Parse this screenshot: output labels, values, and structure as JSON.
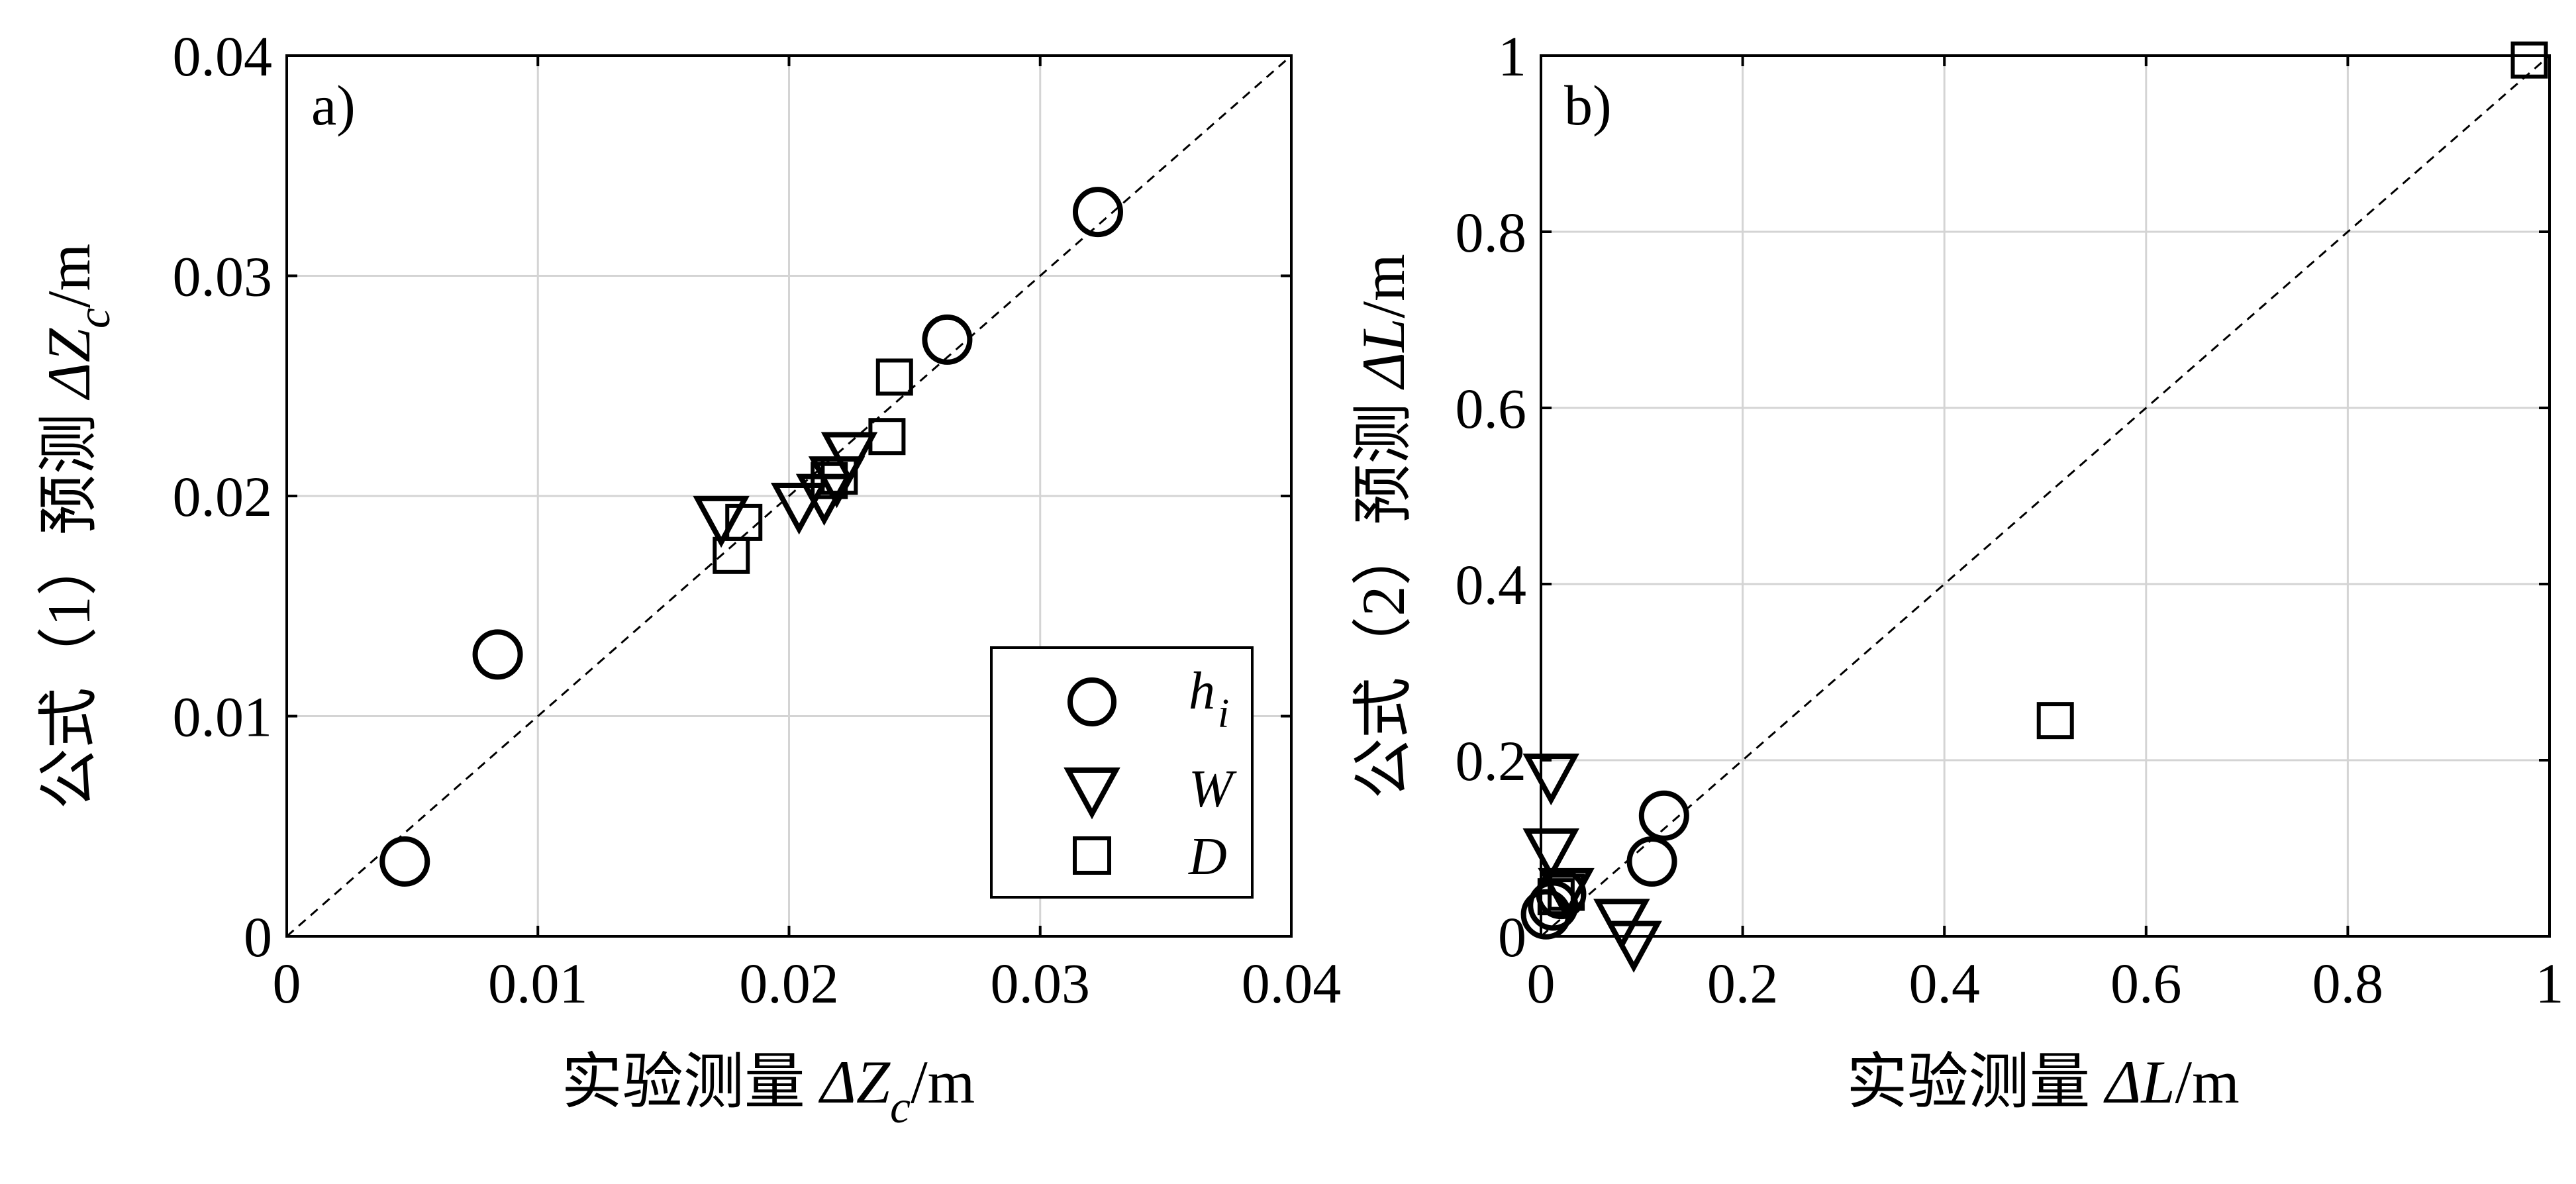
{
  "chart_data": [
    {
      "type": "scatter",
      "panel_label": "a)",
      "xlabel": "实验测量 ΔZc/m",
      "ylabel": "公式（1）预测 ΔZc/m",
      "xlabel_parts": {
        "cn": "实验测量 ",
        "delta": "Δ",
        "var": "Z",
        "sub": "c",
        "unit": "/m"
      },
      "ylabel_parts": {
        "cn": "公式（1）预测 ",
        "delta": "Δ",
        "var": "Z",
        "sub": "c",
        "unit": "/m"
      },
      "xlim": [
        0,
        0.04
      ],
      "ylim": [
        0,
        0.04
      ],
      "x_ticks": [
        0,
        0.01,
        0.02,
        0.03,
        0.04
      ],
      "y_ticks": [
        0,
        0.01,
        0.02,
        0.03,
        0.04
      ],
      "x_tick_labels": [
        "0",
        "0.01",
        "0.02",
        "0.03",
        "0.04"
      ],
      "y_tick_labels": [
        "0",
        "0.01",
        "0.02",
        "0.03",
        "0.04"
      ],
      "grid": true,
      "reference_line": "y = x (dashed)",
      "legend_position": "bottom-right",
      "series": [
        {
          "name": "h",
          "name_sub": "i",
          "marker": "circle",
          "points": [
            [
              0.0047,
              0.0034
            ],
            [
              0.0084,
              0.0128
            ],
            [
              0.0263,
              0.0271
            ],
            [
              0.0323,
              0.0329
            ]
          ]
        },
        {
          "name": "W",
          "marker": "triangle-down",
          "points": [
            [
              0.0173,
              0.0191
            ],
            [
              0.0204,
              0.0197
            ],
            [
              0.0214,
              0.0201
            ],
            [
              0.0219,
              0.0209
            ],
            [
              0.0224,
              0.022
            ]
          ]
        },
        {
          "name": "D",
          "marker": "square",
          "points": [
            [
              0.0177,
              0.0173
            ],
            [
              0.0182,
              0.0188
            ],
            [
              0.0216,
              0.0207
            ],
            [
              0.022,
              0.0209
            ],
            [
              0.0239,
              0.0227
            ],
            [
              0.0242,
              0.0254
            ]
          ]
        }
      ]
    },
    {
      "type": "scatter",
      "panel_label": "b)",
      "xlabel": "实验测量 ΔL/m",
      "ylabel": "公式（2）预测 ΔL/m",
      "xlabel_parts": {
        "cn": "实验测量 ",
        "delta": "Δ",
        "var": "L",
        "sub": "",
        "unit": "/m"
      },
      "ylabel_parts": {
        "cn": "公式（2）预测 ",
        "delta": "Δ",
        "var": "L",
        "sub": "",
        "unit": "/m"
      },
      "xlim": [
        0,
        1
      ],
      "ylim": [
        0,
        1
      ],
      "x_ticks": [
        0,
        0.2,
        0.4,
        0.6,
        0.8,
        1
      ],
      "y_ticks": [
        0,
        0.2,
        0.4,
        0.6,
        0.8,
        1
      ],
      "x_tick_labels": [
        "0",
        "0.2",
        "0.4",
        "0.6",
        "0.8",
        "1"
      ],
      "y_tick_labels": [
        "0",
        "0.2",
        "0.4",
        "0.6",
        "0.8",
        "1"
      ],
      "grid": true,
      "reference_line": "y = x (dashed)",
      "series": [
        {
          "name": "h",
          "name_sub": "i",
          "marker": "circle",
          "points": [
            [
              0.005,
              0.025
            ],
            [
              0.012,
              0.035
            ],
            [
              0.02,
              0.048
            ],
            [
              0.11,
              0.085
            ],
            [
              0.122,
              0.137
            ]
          ]
        },
        {
          "name": "W",
          "marker": "triangle-down",
          "points": [
            [
              0.01,
              0.185
            ],
            [
              0.01,
              0.1
            ],
            [
              0.025,
              0.055
            ],
            [
              0.08,
              0.02
            ],
            [
              0.092,
              -0.005
            ]
          ]
        },
        {
          "name": "D",
          "marker": "square",
          "points": [
            [
              0.015,
              0.045
            ],
            [
              0.025,
              0.05
            ],
            [
              0.51,
              0.245
            ],
            [
              0.98,
              0.995
            ]
          ]
        }
      ]
    }
  ],
  "legend": {
    "items": [
      {
        "label": "h",
        "sub": "i",
        "marker": "circle"
      },
      {
        "label": "W",
        "sub": "",
        "marker": "triangle-down"
      },
      {
        "label": "D",
        "sub": "",
        "marker": "square"
      }
    ]
  }
}
